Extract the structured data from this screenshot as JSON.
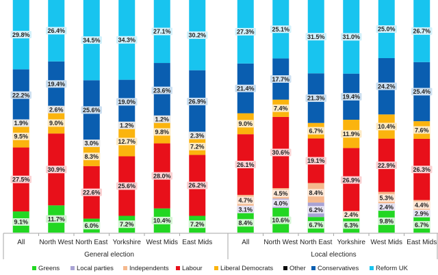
{
  "chart_data": {
    "type": "bar",
    "stacked": true,
    "percent_stacked": true,
    "groups": [
      {
        "name": "General election",
        "categories": [
          "All",
          "North West",
          "North East",
          "Yorkshire",
          "West Mids",
          "East Mids"
        ],
        "series": {
          "Greens": [
            9.1,
            11.7,
            6.0,
            7.2,
            10.4,
            7.2
          ],
          "Local parties": [
            0.0,
            0.0,
            0.0,
            0.0,
            0.0,
            0.0
          ],
          "Independents": [
            0.0,
            0.0,
            0.0,
            0.0,
            0.0,
            0.0
          ],
          "Labour": [
            27.5,
            30.9,
            22.6,
            25.6,
            28.0,
            26.2
          ],
          "Liberal Democrats": [
            9.5,
            9.0,
            8.3,
            12.7,
            9.8,
            7.2
          ],
          "Other": [
            1.9,
            2.6,
            3.0,
            1.2,
            1.2,
            2.3
          ],
          "Conservatives": [
            22.2,
            19.4,
            25.6,
            19.0,
            23.6,
            26.9
          ],
          "Reform UK": [
            29.8,
            26.4,
            34.5,
            34.3,
            27.1,
            30.2
          ]
        }
      },
      {
        "name": "Local elections",
        "categories": [
          "All",
          "North West",
          "North East",
          "Yorkshire",
          "West Mids",
          "East Mids"
        ],
        "series": {
          "Greens": [
            8.4,
            10.6,
            6.7,
            6.3,
            9.8,
            6.7
          ],
          "Local parties": [
            3.1,
            4.0,
            6.2,
            0.0,
            2.4,
            2.9
          ],
          "Independents": [
            4.7,
            4.5,
            8.4,
            2.4,
            5.3,
            4.4
          ],
          "Labour": [
            26.1,
            30.6,
            19.1,
            26.9,
            22.9,
            26.3
          ],
          "Liberal Democrats": [
            9.0,
            7.4,
            6.7,
            11.9,
            10.4,
            7.6
          ],
          "Other": [
            0.0,
            0.0,
            0.0,
            0.0,
            0.0,
            0.0
          ],
          "Conservatives": [
            21.4,
            17.7,
            21.3,
            19.4,
            24.2,
            25.4
          ],
          "Reform UK": [
            27.3,
            25.1,
            31.5,
            31.0,
            25.0,
            26.7
          ]
        }
      }
    ],
    "labels": {
      "General election": {
        "Greens": [
          "9.1%",
          "11.7%",
          "6.0%",
          "7.2%",
          "10.4%",
          "7.2%"
        ],
        "Labour": [
          "27.5%",
          "30.9%",
          "22.6%",
          "25.6%",
          "28.0%",
          "26.2%"
        ],
        "Liberal Democrats": [
          "9.5%",
          "9.0%",
          "8.3%",
          "12.7%",
          "9.8%",
          "7.2%"
        ],
        "Other": [
          "1.9%",
          "2.6%",
          "3.0%",
          "1.2%",
          "1.2%",
          "2.3%"
        ],
        "Conservatives": [
          "22.2%",
          "19.4%",
          "25.6%",
          "19.0%",
          "23.6%",
          "26.9%"
        ],
        "Reform UK": [
          "29.8%",
          "26.4%",
          "34.5%",
          "34.3%",
          "27.1%",
          "30.2%"
        ]
      },
      "Local elections": {
        "Greens": [
          "8.4%",
          "10.6%",
          "6.7%",
          "6.3%",
          "9.8%",
          "6.7%"
        ],
        "Local parties": [
          "3.1%",
          "4.0%",
          "6.2%",
          "",
          "2.4%",
          "2.9%"
        ],
        "Independents": [
          "4.7%",
          "4.5%",
          "8.4%",
          "2.4%",
          "5.3%",
          "4.4%"
        ],
        "Labour": [
          "26.1%",
          "30.6%",
          "19.1%",
          "26.9%",
          "22.9%",
          "26.3%"
        ],
        "Liberal Democrats": [
          "9.0%",
          "7.4%",
          "6.7%",
          "11.9%",
          "10.4%",
          "7.6%"
        ],
        "Conservatives": [
          "21.4%",
          "17.7%",
          "21.3%",
          "19.4%",
          "24.2%",
          "25.4%"
        ],
        "Reform UK": [
          "27.3%",
          "25.1%",
          "31.5%",
          "31.0%",
          "25.0%",
          "26.7%"
        ]
      }
    },
    "series_order": [
      "Greens",
      "Local parties",
      "Independents",
      "Labour",
      "Liberal Democrats",
      "Other",
      "Conservatives",
      "Reform UK"
    ],
    "colors": {
      "Greens": "#22d722",
      "Local parties": "#a9a3d4",
      "Independents": "#f5b98e",
      "Labour": "#e8101a",
      "Liberal Democrats": "#fbb40e",
      "Other": "#0a0a0a",
      "Conservatives": "#0a5eb0",
      "Reform UK": "#18c4ef"
    },
    "label_tints": {
      "Greens": "#d4f5d4",
      "Local parties": "#e6e3f3",
      "Independents": "#fde7d6",
      "Labour": "#fbd2d3",
      "Liberal Democrats": "#fdeac4",
      "Other": "#e6e6e6",
      "Conservatives": "#cde0f1",
      "Reform UK": "#d2f1fb"
    },
    "legend": {
      "position": "bottom",
      "entries": [
        "Greens",
        "Local parties",
        "Independents",
        "Labour",
        "Liberal Democrats",
        "Other",
        "Conservatives",
        "Reform UK"
      ]
    },
    "ylim": [
      0,
      100
    ],
    "grid": false,
    "title": "",
    "xlabel": "",
    "ylabel": ""
  }
}
